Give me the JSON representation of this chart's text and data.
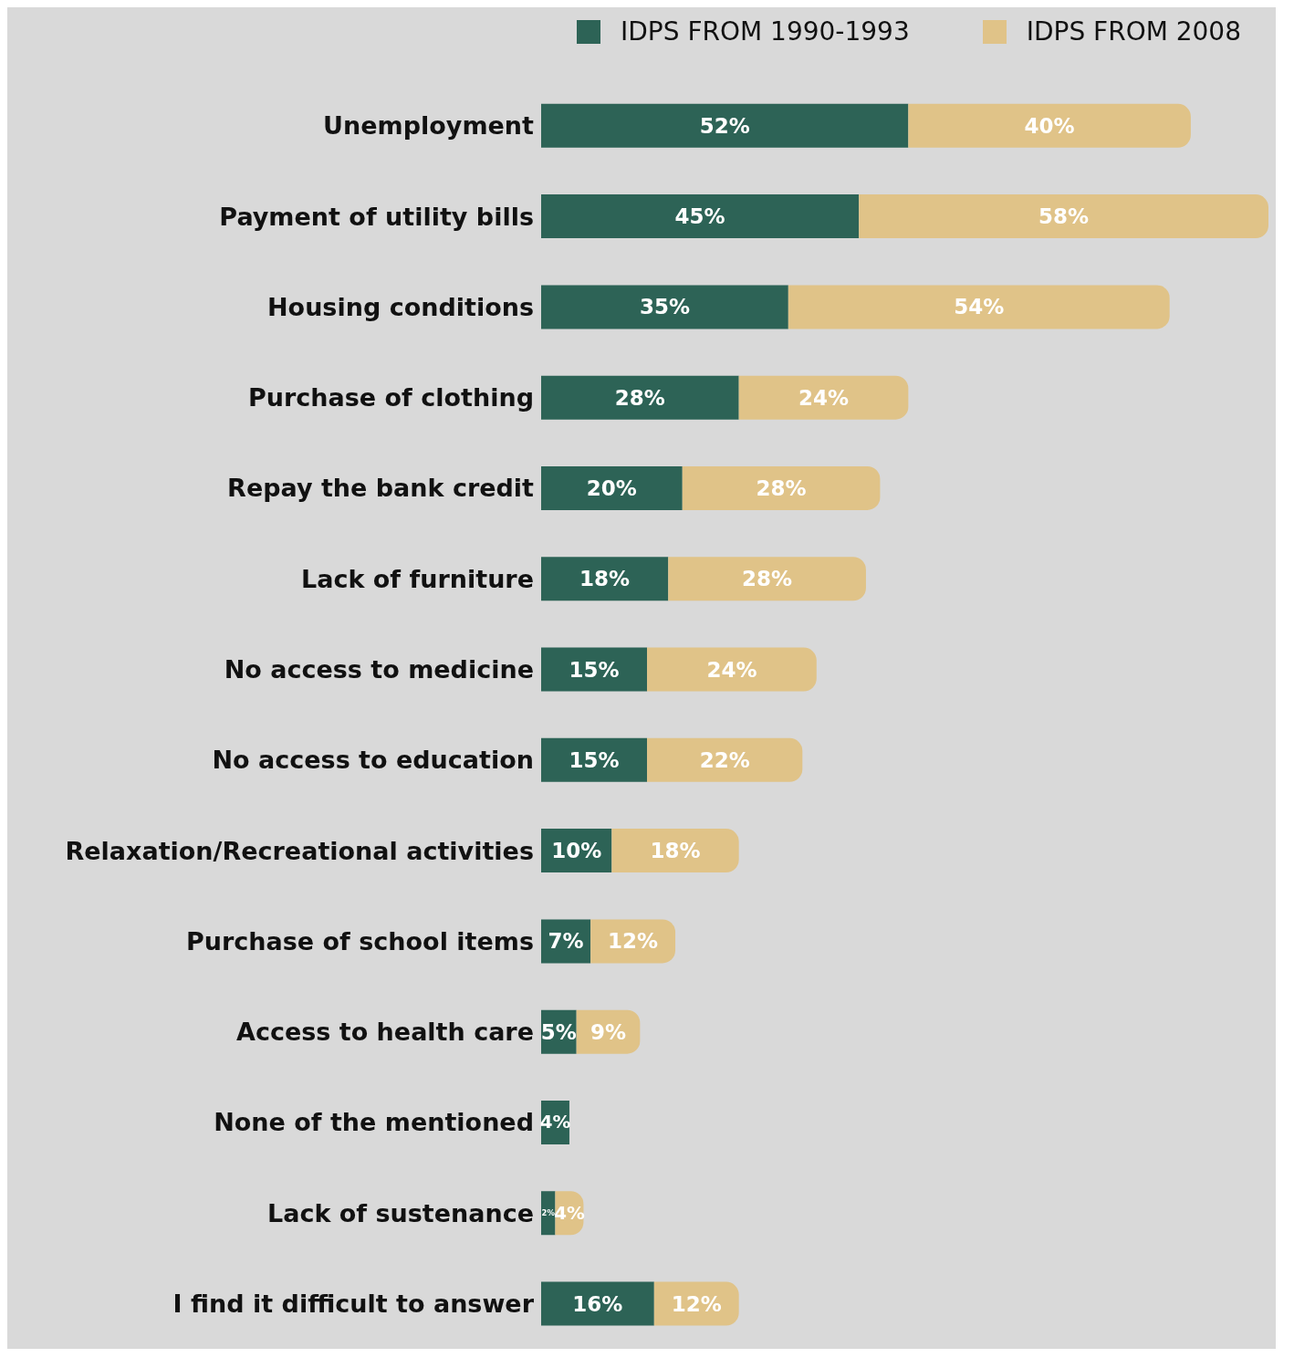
{
  "chart_data": {
    "type": "bar",
    "orientation": "horizontal",
    "stacked": true,
    "legend": "top right",
    "grid": false,
    "categories": [
      "Unemployment",
      "Payment of utility bills",
      "Housing conditions",
      "Purchase of clothing",
      "Repay the bank credit",
      "Lack of furniture",
      "No access to medicine",
      "No access to education",
      "Relaxation/Recreational activities",
      "Purchase of school items",
      "Access to health care",
      "None of the mentioned",
      "Lack of sustenance",
      "I find it difficult to answer"
    ],
    "series": [
      {
        "name": "IDPS FROM 1990-1993",
        "color": "#2d6356",
        "values": [
          52,
          45,
          35,
          28,
          20,
          18,
          15,
          15,
          10,
          7,
          5,
          4,
          2,
          16
        ],
        "value_labels": [
          "52%",
          "45%",
          "35%",
          "28%",
          "20%",
          "18%",
          "15%",
          "15%",
          "10%",
          "7%",
          "5%",
          "4%",
          "2%",
          "16%"
        ]
      },
      {
        "name": "IDPS FROM 2008",
        "color": "#e0c388",
        "values": [
          40,
          58,
          54,
          24,
          28,
          28,
          24,
          22,
          18,
          12,
          9,
          null,
          4,
          12
        ],
        "value_labels": [
          "40%",
          "58%",
          "54%",
          "24%",
          "28%",
          "28%",
          "24%",
          "22%",
          "18%",
          "12%",
          "9%",
          null,
          "4%",
          "12%"
        ]
      }
    ]
  }
}
